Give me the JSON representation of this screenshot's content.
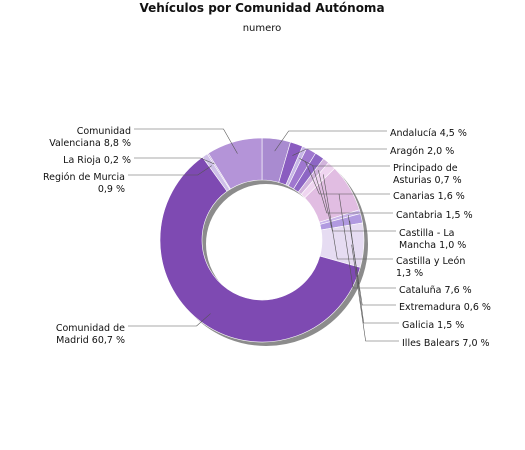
{
  "chart_data": {
    "type": "pie",
    "style": "donut",
    "title": "Vehículos por Comunidad Autónoma",
    "subtitle": "numero",
    "unit": "%",
    "start_category": "Andalucía",
    "direction": "clockwise",
    "categories": [
      "Andalucía",
      "Aragón",
      "Principado de Asturias",
      "Canarias",
      "Cantabria",
      "Castilla - La Mancha",
      "Castilla y León",
      "Cataluña",
      "Extremadura",
      "Galicia",
      "Illes Balears",
      "Comunidad de Madrid",
      "Región de Murcia",
      "La Rioja",
      "Comunidad Valenciana"
    ],
    "values": [
      4.5,
      2.0,
      0.7,
      1.6,
      1.5,
      1.0,
      1.3,
      7.6,
      0.6,
      1.5,
      7.0,
      60.7,
      0.9,
      0.2,
      8.8
    ],
    "labels": [
      [
        "Andalucía 4,5 %"
      ],
      [
        "Aragón 2,0 %"
      ],
      [
        "Principado de",
        "Asturias 0,7 %"
      ],
      [
        "Canarias 1,6 %"
      ],
      [
        "Cantabria 1,5 %"
      ],
      [
        "Castilla - La",
        "Mancha 1,0 %"
      ],
      [
        "Castilla y León",
        "1,3 %"
      ],
      [
        "Cataluña 7,6 %"
      ],
      [
        "Extremadura 0,6 %"
      ],
      [
        "Galicia 1,5 %"
      ],
      [
        "Illes Balears 7,0 %"
      ],
      [
        "Comunidad de",
        "Madrid 60,7 %"
      ],
      [
        "Región de Murcia",
        "0,9 %"
      ],
      [
        "La Rioja 0,2 %"
      ],
      [
        "Comunidad",
        "Valenciana 8,8 %"
      ]
    ],
    "colors": [
      "#a98bd0",
      "#8a5cc0",
      "#c7b6e6",
      "#9f77cf",
      "#8d66c4",
      "#d2b4dc",
      "#efd5f0",
      "#e1bde2",
      "#cab5ea",
      "#b19ae0",
      "#e6dcf2",
      "#7e4ab2",
      "#cfc0e8",
      "#b599d3",
      "#b494d8"
    ]
  }
}
